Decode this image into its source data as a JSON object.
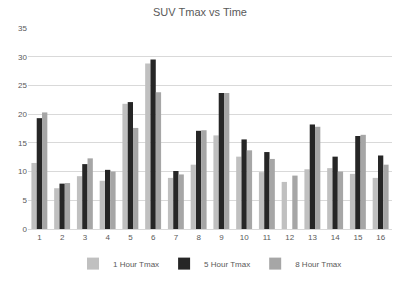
{
  "chart_data": {
    "type": "bar",
    "title": "SUV Tmax vs Time",
    "categories": [
      "1",
      "2",
      "3",
      "4",
      "5",
      "6",
      "7",
      "8",
      "9",
      "10",
      "11",
      "12",
      "13",
      "14",
      "15",
      "16"
    ],
    "series": [
      {
        "name": "1 Hour Tmax",
        "color": "#c0c0c0",
        "values": [
          11.5,
          7.1,
          9.2,
          8.4,
          21.8,
          28.8,
          8.9,
          11.2,
          16.3,
          12.6,
          9.9,
          8.2,
          10.4,
          10.6,
          9.6,
          8.9
        ]
      },
      {
        "name": "5 Hour Tmax",
        "color": "#262626",
        "values": [
          19.3,
          7.9,
          11.3,
          10.3,
          22.1,
          29.5,
          10.1,
          17.1,
          23.7,
          15.6,
          13.4,
          null,
          18.2,
          12.6,
          16.2,
          12.8
        ]
      },
      {
        "name": "8 Hour Tmax",
        "color": "#a6a6a6",
        "values": [
          20.3,
          8.0,
          12.3,
          10.0,
          17.6,
          23.8,
          9.5,
          17.2,
          23.7,
          13.7,
          12.2,
          9.3,
          17.8,
          10.0,
          16.4,
          11.2
        ]
      }
    ],
    "ylim": [
      0,
      35
    ],
    "yticks": [
      0,
      5,
      10,
      15,
      20,
      25,
      30,
      35
    ],
    "grid": true,
    "legend": "bottom"
  }
}
